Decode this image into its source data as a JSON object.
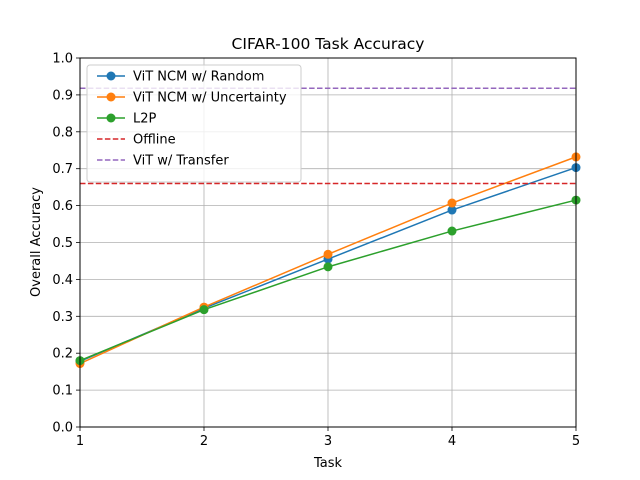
{
  "chart_data": {
    "type": "line",
    "title": "CIFAR-100 Task Accuracy",
    "xlabel": "Task",
    "ylabel": "Overall Accuracy",
    "x": [
      1,
      2,
      3,
      4,
      5
    ],
    "xlim": [
      1,
      5
    ],
    "ylim": [
      0.0,
      1.0
    ],
    "xticks": [
      "1",
      "2",
      "3",
      "4",
      "5"
    ],
    "yticks": [
      "0.0",
      "0.1",
      "0.2",
      "0.3",
      "0.4",
      "0.5",
      "0.6",
      "0.7",
      "0.8",
      "0.9",
      "1.0"
    ],
    "grid": true,
    "legend_position": "top-left",
    "series": [
      {
        "name": "ViT NCM w/ Random",
        "color": "#1f77b4",
        "style": "solid",
        "marker": "circle",
        "values": [
          0.178,
          0.322,
          0.455,
          0.588,
          0.703
        ]
      },
      {
        "name": "ViT NCM w/ Uncertainty",
        "color": "#ff7f0e",
        "style": "solid",
        "marker": "circle",
        "values": [
          0.172,
          0.325,
          0.468,
          0.607,
          0.732
        ]
      },
      {
        "name": "L2P",
        "color": "#2ca02c",
        "style": "solid",
        "marker": "circle",
        "values": [
          0.18,
          0.318,
          0.434,
          0.531,
          0.615
        ]
      },
      {
        "name": "Offline",
        "color": "#d62728",
        "style": "dashed",
        "marker": "none",
        "constant": 0.66
      },
      {
        "name": "ViT w/ Transfer",
        "color": "#9467bd",
        "style": "dashed",
        "marker": "none",
        "constant": 0.918
      }
    ]
  }
}
